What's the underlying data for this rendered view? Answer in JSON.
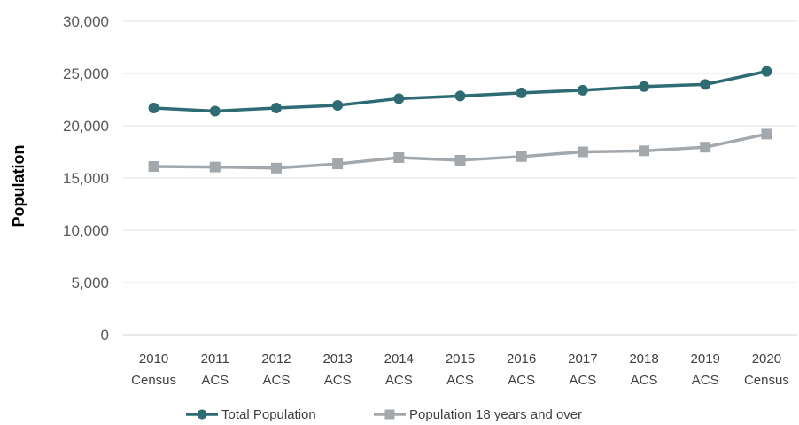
{
  "chart_data": {
    "type": "line",
    "title": "",
    "xlabel": "",
    "ylabel": "Population",
    "ylim": [
      0,
      30000
    ],
    "yticks": [
      0,
      5000,
      10000,
      15000,
      20000,
      25000,
      30000
    ],
    "ytick_labels": [
      "0",
      "5,000",
      "10,000",
      "15,000",
      "20,000",
      "25,000",
      "30,000"
    ],
    "categories": [
      [
        "2010",
        "Census"
      ],
      [
        "2011",
        "ACS"
      ],
      [
        "2012",
        "ACS"
      ],
      [
        "2013",
        "ACS"
      ],
      [
        "2014",
        "ACS"
      ],
      [
        "2015",
        "ACS"
      ],
      [
        "2016",
        "ACS"
      ],
      [
        "2017",
        "ACS"
      ],
      [
        "2018",
        "ACS"
      ],
      [
        "2019",
        "ACS"
      ],
      [
        "2020",
        "Census"
      ]
    ],
    "grid": "horizontal",
    "legend_position": "bottom",
    "series": [
      {
        "name": "Total Population",
        "marker": "circle",
        "color": "#2e6b73",
        "values": [
          21700,
          21400,
          21700,
          21950,
          22600,
          22850,
          23150,
          23400,
          23750,
          23950,
          25200
        ]
      },
      {
        "name": "Population 18 years and over",
        "marker": "square",
        "color": "#a3a8ad",
        "values": [
          16100,
          16050,
          15950,
          16350,
          16950,
          16700,
          17050,
          17500,
          17600,
          17950,
          19200
        ]
      }
    ]
  }
}
